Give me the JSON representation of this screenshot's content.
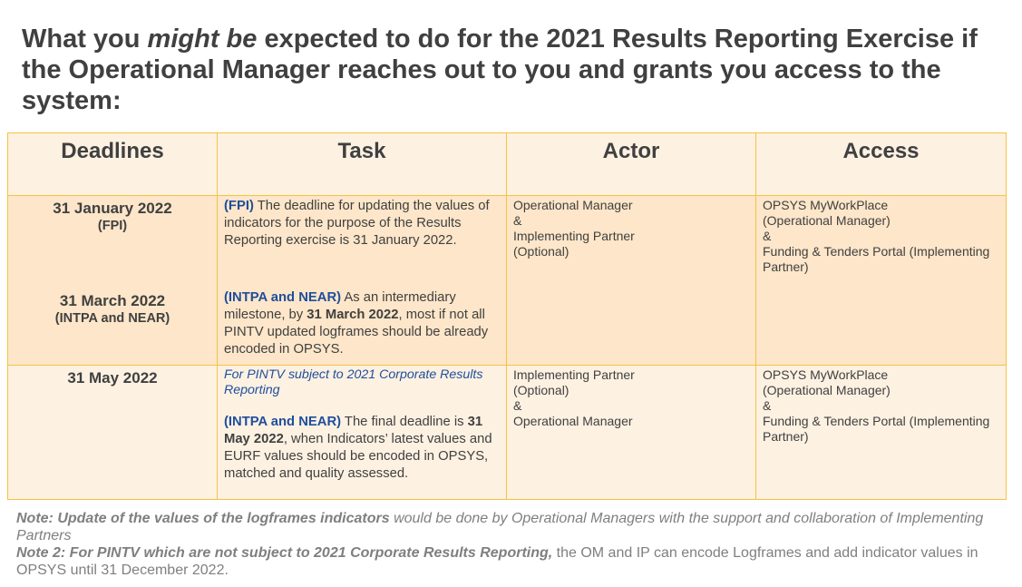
{
  "title": {
    "part1": "What you ",
    "emph": "might be",
    "part2": " expected to do for the 2021 Results Reporting Exercise if the Operational Manager reaches out to you and grants you access to the system:"
  },
  "table": {
    "headers": [
      "Deadlines",
      "Task",
      "Actor",
      "Access"
    ],
    "row1": {
      "deadline1_date": "31 January 2022",
      "deadline1_sub": "(FPI)",
      "deadline2_date": "31 March 2022",
      "deadline2_sub": "(INTPA and NEAR)",
      "task1_tag": "(FPI)",
      "task1_text": " The deadline for updating the values of indicators for the purpose of the Results Reporting exercise is 31 January 2022.",
      "task2_tag": "(INTPA and NEAR)",
      "task2_text_a": " As an intermediary milestone, by ",
      "task2_bold": "31 March 2022",
      "task2_text_b": ", most if not all PINTV updated logframes should be already encoded in OPSYS.",
      "actor": [
        "Operational Manager",
        "&",
        "Implementing Partner",
        "(Optional)"
      ],
      "access": [
        "OPSYS MyWorkPlace",
        "(Operational Manager)",
        "&",
        "Funding & Tenders Portal (Implementing Partner)"
      ]
    },
    "row2": {
      "deadline_date": "31 May 2022",
      "task_note": "For PINTV subject to 2021 Corporate Results Reporting",
      "task_tag": "(INTPA and NEAR)",
      "task_text_a": " The final deadline is ",
      "task_bold": "31 May 2022",
      "task_text_b": ", when Indicators’ latest values and EURF values should be encoded in OPSYS, matched and quality assessed.",
      "actor": [
        "Implementing Partner",
        "(Optional)",
        "&",
        "Operational Manager"
      ],
      "access": [
        "OPSYS MyWorkPlace",
        "(Operational Manager)",
        "&",
        "Funding & Tenders Portal (Implementing Partner)"
      ]
    }
  },
  "notes": {
    "note1_bold": "Note: Update of the values of the logframes indicators",
    "note1_rest": " would be done by Operational Managers with the support and collaboration of Implementing Partners",
    "note2_bold": "Note 2: For PINTV which are not subject to 2021 Corporate Results Reporting,",
    "note2_rest": " the OM and IP can encode Logframes and add indicator values in OPSYS until 31 December 2022."
  }
}
